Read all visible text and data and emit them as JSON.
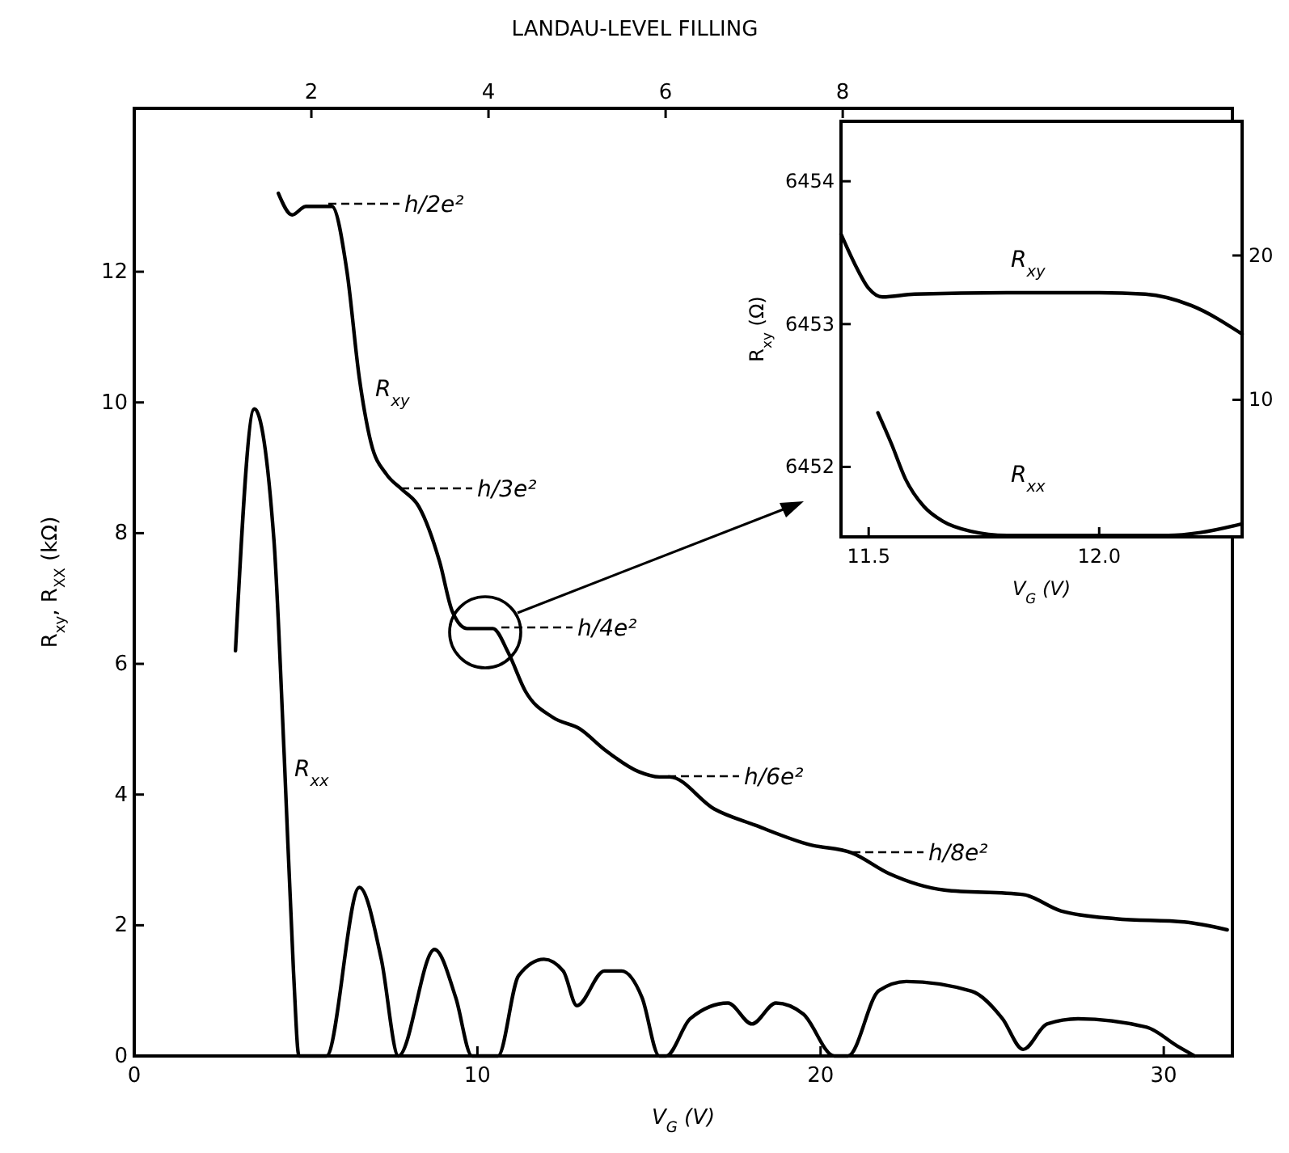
{
  "chart_data": [
    {
      "type": "line",
      "x2label": "LANDAU-LEVEL FILLING",
      "xlabel": "V$_{G}$ (V)",
      "ylabel": "R$_{xy}$, R$_{XX}$ (kΩ)",
      "xlim": [
        0,
        32
      ],
      "xticks": [
        0,
        10,
        20,
        30
      ],
      "ylim": [
        0,
        14.5
      ],
      "yticks": [
        0,
        2,
        4,
        6,
        8,
        10,
        12
      ],
      "x2lim": [
        0,
        12.4
      ],
      "x2ticks": [
        2,
        4,
        6,
        8
      ],
      "series": [
        {
          "name": "R$_{xy}$",
          "color": "#000000",
          "x": [
            4.2,
            4.6,
            5.0,
            5.76,
            6.2,
            6.56,
            6.9,
            7.35,
            7.8,
            8.3,
            8.9,
            9.27,
            9.7,
            10.45,
            10.9,
            11.4,
            12.2,
            13.0,
            13.7,
            14.7,
            15.3,
            15.6,
            16.9,
            18.1,
            19.7,
            20.9,
            22.0,
            23.6,
            25.9,
            27.0,
            28.6,
            30.6,
            31.85
          ],
          "values": [
            13.2,
            12.87,
            13.0,
            13.0,
            12.0,
            10.37,
            9.38,
            8.9,
            8.67,
            8.4,
            7.56,
            6.8,
            6.54,
            6.54,
            6.17,
            5.58,
            5.18,
            5.0,
            4.69,
            4.35,
            4.27,
            4.27,
            3.78,
            3.53,
            3.23,
            3.11,
            2.79,
            2.54,
            2.47,
            2.22,
            2.1,
            2.05,
            1.93
          ]
        },
        {
          "name": "R$_{xx}$",
          "color": "#000000",
          "x": [
            2.95,
            3.5,
            4.07,
            4.37,
            4.64,
            4.8,
            5.6,
            6.56,
            7.2,
            7.7,
            8.75,
            9.37,
            9.84,
            10.6,
            11.2,
            11.94,
            12.5,
            12.9,
            13.7,
            14.2,
            14.8,
            15.3,
            15.5,
            16.2,
            17.3,
            18.0,
            18.7,
            19.5,
            20.4,
            20.8,
            21.7,
            22.5,
            24.4,
            25.3,
            25.9,
            26.6,
            27.5,
            29.5,
            30.4,
            30.9
          ],
          "values": [
            6.2,
            9.9,
            7.9,
            4.6,
            1.3,
            0,
            0,
            2.58,
            1.48,
            0,
            1.63,
            0.89,
            0,
            0,
            1.23,
            1.48,
            1.3,
            0.77,
            1.3,
            1.3,
            0.89,
            0,
            0,
            0.57,
            0.81,
            0.49,
            0.81,
            0.64,
            0,
            0,
            1.0,
            1.14,
            0.99,
            0.57,
            0.1,
            0.49,
            0.57,
            0.44,
            0.15,
            0
          ]
        }
      ],
      "annotations": [
        "h/2e²",
        "h/3e²",
        "h/4e²",
        "h/6e²",
        "h/8e²"
      ]
    },
    {
      "type": "line",
      "xlabel": "V$_{G}$ (V)",
      "ylabel": "R$_{xy}$ (Ω)",
      "xlim": [
        11.44,
        12.31
      ],
      "xticks": [
        11.5,
        {
          "value": 12,
          "label": "12.0"
        }
      ],
      "ylim": [
        6451.51,
        6454.42
      ],
      "yticks": [
        6452,
        6453,
        6454
      ],
      "y2lim": [
        0.5,
        29.3
      ],
      "y2ticks": [
        10,
        20
      ],
      "series": [
        {
          "name": "R$_{xy}$",
          "color": "#000000",
          "x": [
            11.44,
            11.47,
            11.5,
            11.53,
            11.6,
            11.8,
            12.0,
            12.1,
            12.2,
            12.31
          ],
          "values": [
            6453.63,
            6453.42,
            6453.25,
            6453.19,
            6453.21,
            6453.22,
            6453.22,
            6453.21,
            6453.13,
            6452.93
          ]
        },
        {
          "name": "R$_{xx}$",
          "color": "#000000",
          "axis": "y2",
          "x": [
            11.52,
            11.55,
            11.58,
            11.62,
            11.66,
            11.72,
            11.8,
            12.0,
            12.15,
            12.22,
            12.31
          ],
          "values": [
            9.1,
            6.9,
            4.5,
            2.6,
            1.6,
            0.9,
            0.6,
            0.6,
            0.6,
            0.8,
            1.4
          ]
        }
      ]
    }
  ]
}
